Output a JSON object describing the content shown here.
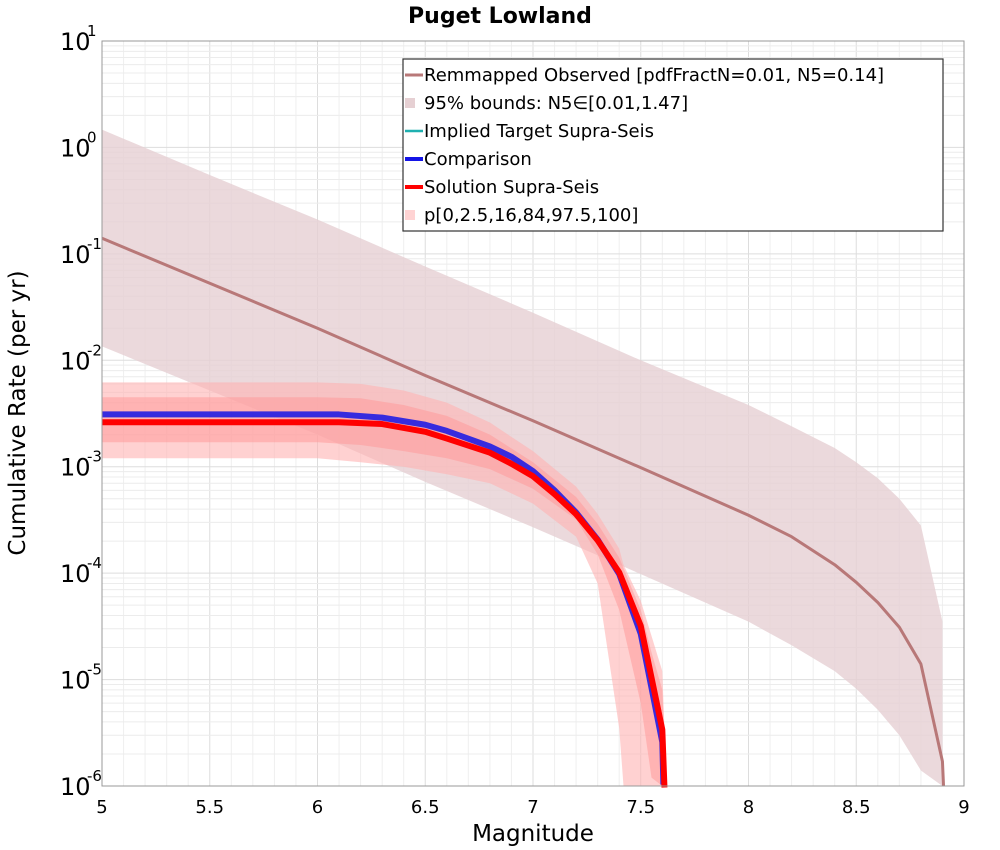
{
  "chart_data": {
    "type": "line",
    "title": "Puget Lowland",
    "xlabel": "Magnitude",
    "ylabel": "Cumulative Rate (per yr)",
    "xlim": [
      5,
      9
    ],
    "ylim": [
      1e-06,
      10
    ],
    "yscale": "log",
    "grid": true,
    "legend_position": "top-right",
    "x_ticks": [
      "5",
      "5.5",
      "6",
      "6.5",
      "7",
      "7.5",
      "8",
      "8.5",
      "9"
    ],
    "y_ticks": [
      {
        "base": "10",
        "exp": "-6"
      },
      {
        "base": "10",
        "exp": "-5"
      },
      {
        "base": "10",
        "exp": "-4"
      },
      {
        "base": "10",
        "exp": "-3"
      },
      {
        "base": "10",
        "exp": "-2"
      },
      {
        "base": "10",
        "exp": "-1"
      },
      {
        "base": "10",
        "exp": "0"
      },
      {
        "base": "10",
        "exp": "1"
      }
    ],
    "legend": [
      {
        "label": "Remmapped Observed [pdfFractN=0.01, N5=0.14]",
        "kind": "line",
        "color": "#b87878"
      },
      {
        "label": "95% bounds: N5∈[0.01,1.47]",
        "kind": "band",
        "color": "#e6d0d3"
      },
      {
        "label": "Implied Target Supra-Seis",
        "kind": "line",
        "color": "#1fb0b0"
      },
      {
        "label": "Comparison",
        "kind": "line",
        "color": "#1414e6"
      },
      {
        "label": "Solution Supra-Seis",
        "kind": "line",
        "color": "#ff0000"
      },
      {
        "label": "p[0,2.5,16,84,97.5,100]",
        "kind": "band",
        "color": "#ffd3d3"
      }
    ],
    "series": [
      {
        "name": "Remmapped Observed [pdfFractN=0.01, N5=0.14]",
        "color": "#b87878",
        "x": [
          5.0,
          5.5,
          6.0,
          6.5,
          7.0,
          7.5,
          8.0,
          8.2,
          8.4,
          8.5,
          8.6,
          8.7,
          8.8,
          8.9,
          8.905
        ],
        "y": [
          0.14,
          0.053,
          0.02,
          0.0072,
          0.0027,
          0.00098,
          0.00035,
          0.00022,
          0.00012,
          8.2e-05,
          5.3e-05,
          3.1e-05,
          1.4e-05,
          1.7e-06,
          1e-07
        ]
      },
      {
        "name": "Comparison",
        "color": "#1414e6",
        "x": [
          5.0,
          6.0,
          6.1,
          6.3,
          6.5,
          6.6,
          6.8,
          6.9,
          7.0,
          7.1,
          7.2,
          7.3,
          7.4,
          7.5,
          7.6,
          7.605
        ],
        "y": [
          0.003,
          0.003,
          0.003,
          0.0028,
          0.0024,
          0.0021,
          0.0015,
          0.0012,
          0.00088,
          0.00058,
          0.00036,
          0.0002,
          9.5e-05,
          2.6e-05,
          2.5e-06,
          1e-07
        ]
      },
      {
        "name": "Solution Supra-Seis",
        "color": "#ff0000",
        "x": [
          5.0,
          6.0,
          6.1,
          6.3,
          6.5,
          6.6,
          6.8,
          6.9,
          7.0,
          7.1,
          7.2,
          7.3,
          7.4,
          7.5,
          7.6,
          7.61
        ],
        "y": [
          0.0027,
          0.0027,
          0.0027,
          0.0026,
          0.0022,
          0.0019,
          0.0014,
          0.0011,
          0.00084,
          0.00057,
          0.00037,
          0.00021,
          0.000105,
          3.3e-05,
          3.5e-06,
          1e-07
        ]
      }
    ],
    "bands": [
      {
        "name": "95% bounds: N5∈[0.01,1.47]",
        "color": "#e6d0d3",
        "x": [
          5.0,
          5.5,
          6.0,
          6.5,
          7.0,
          7.5,
          8.0,
          8.2,
          8.4,
          8.5,
          8.6,
          8.7,
          8.8,
          8.9
        ],
        "lower": [
          0.0135,
          0.0052,
          0.002,
          0.00072,
          0.00027,
          9.8e-05,
          3.5e-05,
          2.1e-05,
          1.2e-05,
          8.2e-06,
          5.2e-06,
          3e-06,
          1.4e-06,
          1e-07
        ],
        "upper": [
          1.47,
          0.55,
          0.21,
          0.076,
          0.028,
          0.01,
          0.0038,
          0.0024,
          0.0015,
          0.0011,
          0.00078,
          0.0005,
          0.00028,
          3.5e-05
        ]
      },
      {
        "name": "p[0,2.5,16,84,97.5,100]",
        "color": "#ffb3b3",
        "opacity": 0.6,
        "x": [
          5.0,
          6.0,
          6.2,
          6.4,
          6.6,
          6.8,
          7.0,
          7.2,
          7.3,
          7.4,
          7.42,
          7.5,
          7.6,
          7.62
        ],
        "lower": [
          0.0012,
          0.0012,
          0.0011,
          0.001,
          0.00085,
          0.0007,
          0.00045,
          0.00022,
          8e-05,
          3.5e-06,
          1e-07,
          1e-07,
          1e-07,
          1e-07
        ],
        "upper": [
          0.0062,
          0.0062,
          0.006,
          0.0052,
          0.004,
          0.0026,
          0.0014,
          0.00065,
          0.00036,
          0.00017,
          0.00012,
          5.5e-05,
          1.2e-05,
          1e-07
        ]
      },
      {
        "name": "p[0,2.5,16,84,97.5,100]",
        "color": "#ff9a9a",
        "opacity": 0.55,
        "x": [
          5.0,
          6.0,
          6.2,
          6.4,
          6.6,
          6.8,
          7.0,
          7.2,
          7.3,
          7.4,
          7.5,
          7.55,
          7.6,
          7.62
        ],
        "lower": [
          0.0017,
          0.0017,
          0.0016,
          0.0014,
          0.0012,
          0.00095,
          0.00062,
          0.00032,
          0.00015,
          4.5e-05,
          6e-06,
          1.2e-06,
          1e-07,
          1e-07
        ],
        "upper": [
          0.0045,
          0.0045,
          0.0044,
          0.0038,
          0.003,
          0.002,
          0.0011,
          0.00052,
          0.00029,
          0.00014,
          4.5e-05,
          1.8e-05,
          8e-06,
          1e-07
        ]
      }
    ]
  }
}
